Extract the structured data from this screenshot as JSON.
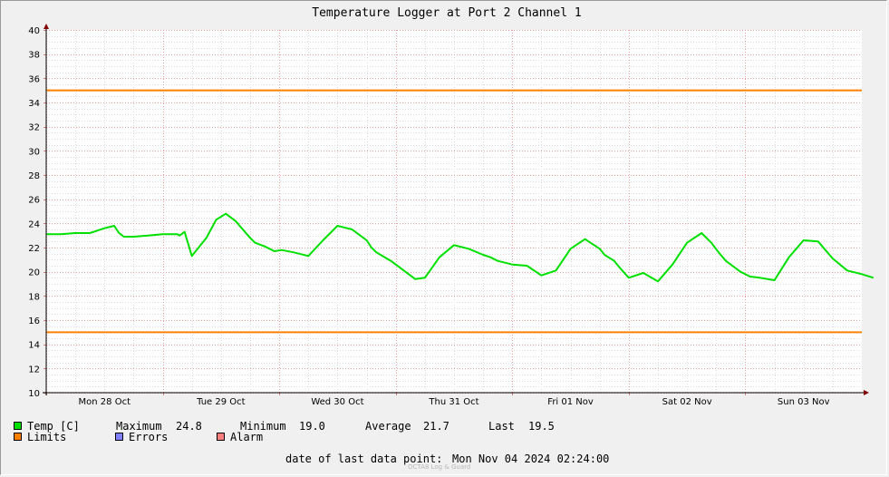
{
  "chart_data": {
    "type": "line",
    "title": "Temperature Logger at Port 2 Channel 1",
    "ylim": [
      10,
      40
    ],
    "yticks": [
      10,
      12,
      14,
      16,
      18,
      20,
      22,
      24,
      26,
      28,
      30,
      32,
      34,
      36,
      38,
      40
    ],
    "x_tick_labels": [
      "Mon 28 Oct",
      "Tue 29 Oct",
      "Wed 30 Oct",
      "Thu 31 Oct",
      "Fri 01 Nov",
      "Sat 02 Nov",
      "Sun 03 Nov"
    ],
    "x_start": "2024-10-28 00:00",
    "x_end": "2024-11-04 02:24",
    "limits": [
      35,
      15
    ],
    "series": [
      {
        "name": "Temp [C]",
        "color": "#00e000",
        "x": [
          "2024-10-28 00:00",
          "2024-10-28 03:00",
          "2024-10-28 06:00",
          "2024-10-28 09:00",
          "2024-10-28 12:00",
          "2024-10-28 14:00",
          "2024-10-28 15:00",
          "2024-10-28 16:00",
          "2024-10-28 18:00",
          "2024-10-28 21:00",
          "2024-10-29 00:00",
          "2024-10-29 03:00",
          "2024-10-29 03:30",
          "2024-10-29 04:30",
          "2024-10-29 06:00",
          "2024-10-29 09:00",
          "2024-10-29 11:00",
          "2024-10-29 13:00",
          "2024-10-29 15:00",
          "2024-10-29 18:00",
          "2024-10-29 19:00",
          "2024-10-29 21:00",
          "2024-10-29 23:00",
          "2024-10-30 00:30",
          "2024-10-30 03:00",
          "2024-10-30 06:00",
          "2024-10-30 09:00",
          "2024-10-30 12:00",
          "2024-10-30 15:00",
          "2024-10-30 18:00",
          "2024-10-30 19:00",
          "2024-10-30 20:00",
          "2024-10-30 23:00",
          "2024-10-31 01:00",
          "2024-10-31 04:00",
          "2024-10-31 06:00",
          "2024-10-31 09:00",
          "2024-10-31 12:00",
          "2024-10-31 15:00",
          "2024-10-31 18:00",
          "2024-10-31 19:30",
          "2024-10-31 21:00",
          "2024-11-01 00:00",
          "2024-11-01 03:00",
          "2024-11-01 06:00",
          "2024-11-01 09:00",
          "2024-11-01 12:00",
          "2024-11-01 15:00",
          "2024-11-01 18:00",
          "2024-11-01 19:00",
          "2024-11-01 21:00",
          "2024-11-01 22:00",
          "2024-11-02 00:00",
          "2024-11-02 03:00",
          "2024-11-02 06:00",
          "2024-11-02 09:00",
          "2024-11-02 12:00",
          "2024-11-02 15:00",
          "2024-11-02 17:00",
          "2024-11-02 18:30",
          "2024-11-02 20:00",
          "2024-11-02 23:00",
          "2024-11-03 01:00",
          "2024-11-03 03:00",
          "2024-11-03 06:00",
          "2024-11-03 09:00",
          "2024-11-03 12:00",
          "2024-11-03 15:00",
          "2024-11-03 18:00",
          "2024-11-03 21:00",
          "2024-11-04 00:00",
          "2024-11-04 02:24"
        ],
        "values": [
          23.1,
          23.1,
          23.2,
          23.2,
          23.6,
          23.8,
          23.2,
          22.9,
          22.9,
          23.0,
          23.1,
          23.1,
          23.0,
          23.3,
          21.3,
          22.8,
          24.3,
          24.8,
          24.2,
          22.8,
          22.4,
          22.1,
          21.7,
          21.8,
          21.6,
          21.3,
          22.6,
          23.8,
          23.5,
          22.6,
          22.0,
          21.6,
          20.9,
          20.3,
          19.4,
          19.5,
          21.2,
          22.2,
          21.9,
          21.4,
          21.2,
          20.9,
          20.6,
          20.5,
          19.7,
          20.1,
          21.9,
          22.7,
          21.9,
          21.4,
          20.9,
          20.4,
          19.5,
          19.9,
          19.2,
          20.6,
          22.4,
          23.2,
          22.4,
          21.6,
          20.9,
          20.0,
          19.6,
          19.5,
          19.3,
          21.2,
          22.6,
          22.5,
          21.1,
          20.1,
          19.8,
          19.5
        ]
      }
    ]
  },
  "legend": {
    "temp_label": "Temp [C]",
    "maximum_label": "Maximum",
    "maximum_value": "24.8",
    "minimum_label": "Minimum",
    "minimum_value": "19.0",
    "average_label": "Average",
    "average_value": "21.7",
    "last_label": "Last",
    "last_value": "19.5",
    "limits_label": "Limits",
    "errors_label": "Errors",
    "alarm_label": "Alarm",
    "temp_color": "#00e000",
    "limits_color": "#ff7f00",
    "errors_color": "#7f7fff",
    "alarm_color": "#ff7f7f"
  },
  "footer": {
    "last_point_label": "date of last data point:",
    "last_point_value": "Mon Nov 04 2024 02:24:00",
    "watermark": "OCTA8 Log & Guard"
  }
}
